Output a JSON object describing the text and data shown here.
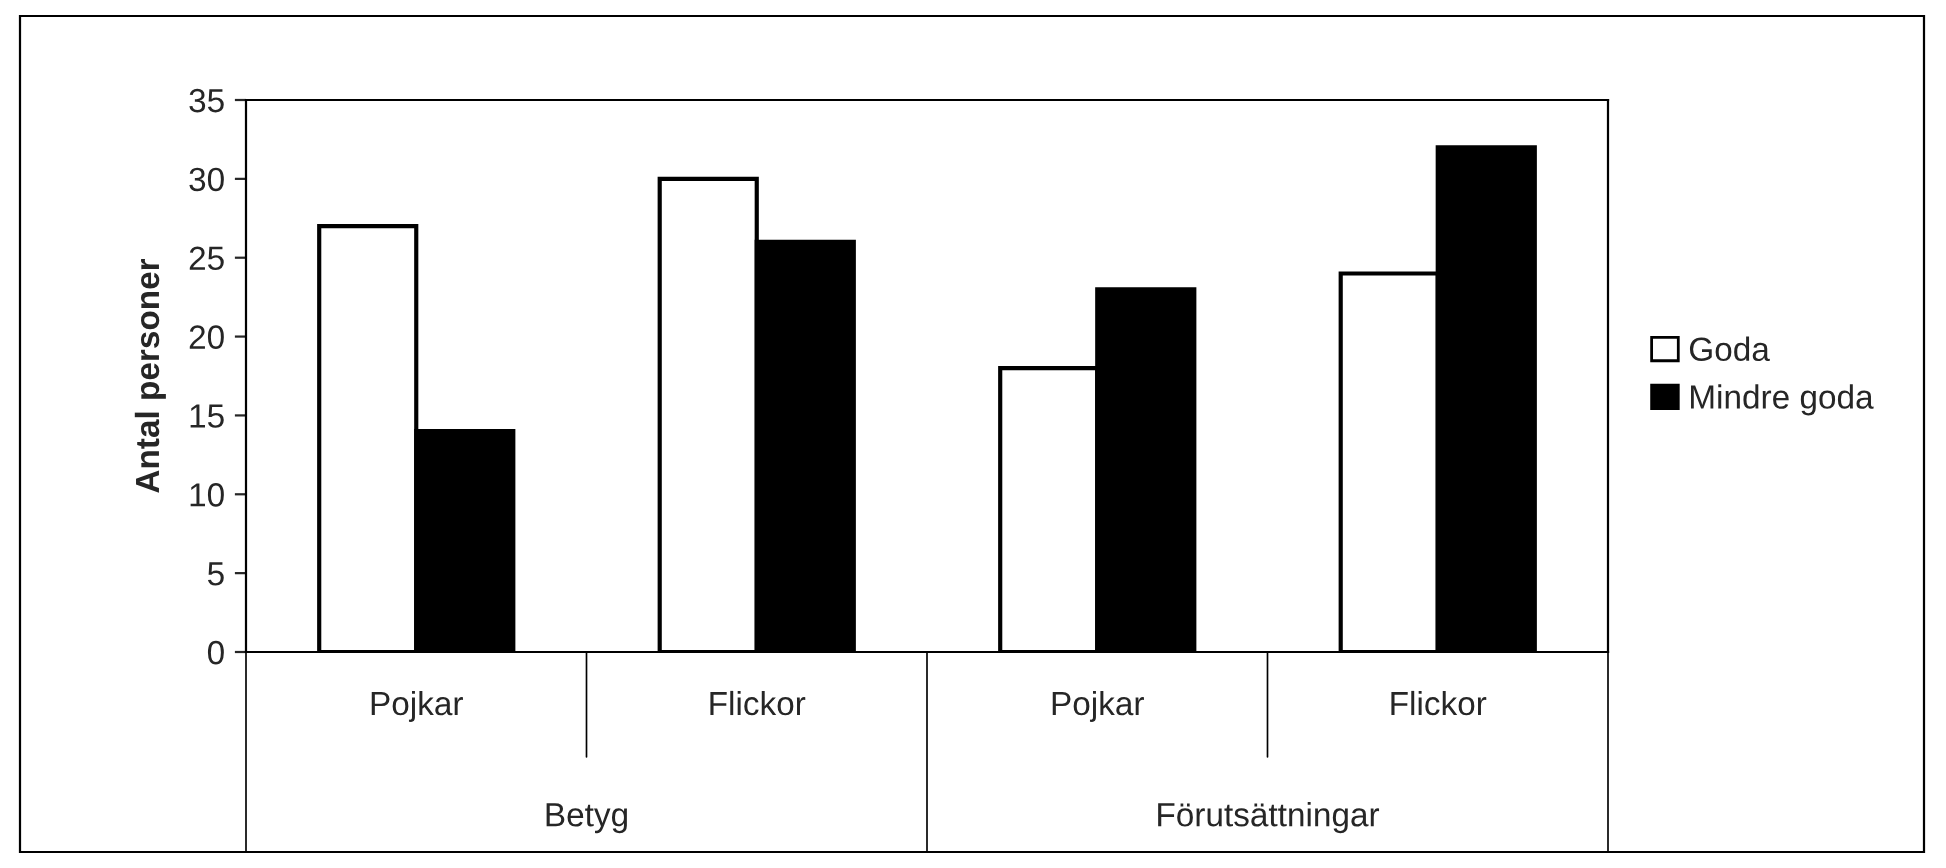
{
  "chart_data": {
    "type": "bar",
    "ylabel": "Antal personer",
    "categories": [
      "Pojkar",
      "Flickor",
      "Pojkar",
      "Flickor"
    ],
    "series": [
      {
        "name": "Goda",
        "color": "#ffffff",
        "values": [
          27,
          30,
          18,
          24
        ]
      },
      {
        "name": "Mindre goda",
        "color": "#000000",
        "values": [
          14,
          26,
          23,
          32
        ]
      }
    ],
    "annotations": [
      "Betyg",
      "Förutsättningar"
    ],
    "ylim": [
      0,
      35
    ],
    "yticks": [
      0,
      5,
      10,
      15,
      20,
      25,
      30,
      35
    ],
    "grid": false,
    "legend": "right"
  }
}
